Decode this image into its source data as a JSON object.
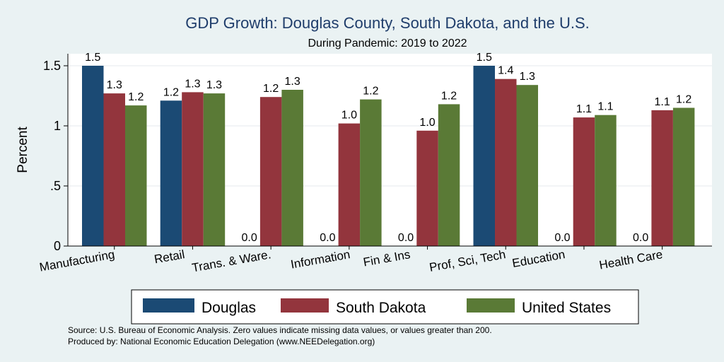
{
  "chart_data": {
    "type": "bar",
    "title": "GDP Growth: Douglas County, South Dakota, and the U.S.",
    "subtitle": "During Pandemic: 2019 to 2022",
    "ylabel": "Percent",
    "xlabel": "",
    "ylim": [
      0,
      1.6
    ],
    "yticks": [
      0,
      0.5,
      1,
      1.5
    ],
    "ytick_labels": [
      "0",
      ".5",
      "1",
      "1.5"
    ],
    "grid": true,
    "legend_position": "bottom",
    "categories": [
      "Manufacturing",
      "Retail",
      "Trans. & Ware.",
      "Information",
      "Fin & Ins",
      "Prof, Sci, Tech",
      "Education",
      "Health Care"
    ],
    "series": [
      {
        "name": "Douglas",
        "color": "#1b4a74",
        "values": [
          1.5,
          1.21,
          0,
          0,
          0,
          1.5,
          0,
          0
        ],
        "labels": [
          "1.5",
          "1.2",
          "0.0",
          "0.0",
          "0.0",
          "1.5",
          "0.0",
          "0.0"
        ]
      },
      {
        "name": "South Dakota",
        "color": "#93353d",
        "values": [
          1.27,
          1.28,
          1.24,
          1.02,
          0.96,
          1.39,
          1.07,
          1.13
        ],
        "labels": [
          "1.3",
          "1.3",
          "1.2",
          "1.0",
          "1.0",
          "1.4",
          "1.1",
          "1.1"
        ]
      },
      {
        "name": "United States",
        "color": "#5a7a36",
        "values": [
          1.17,
          1.27,
          1.3,
          1.22,
          1.18,
          1.34,
          1.09,
          1.15
        ],
        "labels": [
          "1.2",
          "1.3",
          "1.3",
          "1.2",
          "1.2",
          "1.3",
          "1.1",
          "1.2"
        ]
      }
    ],
    "notes": [
      "Source: U.S. Bureau of Economic Analysis. Zero values indicate missing data values, or values greater than 200.",
      "Produced by: National Economic Education Delegation (www.NEEDelegation.org)"
    ]
  }
}
